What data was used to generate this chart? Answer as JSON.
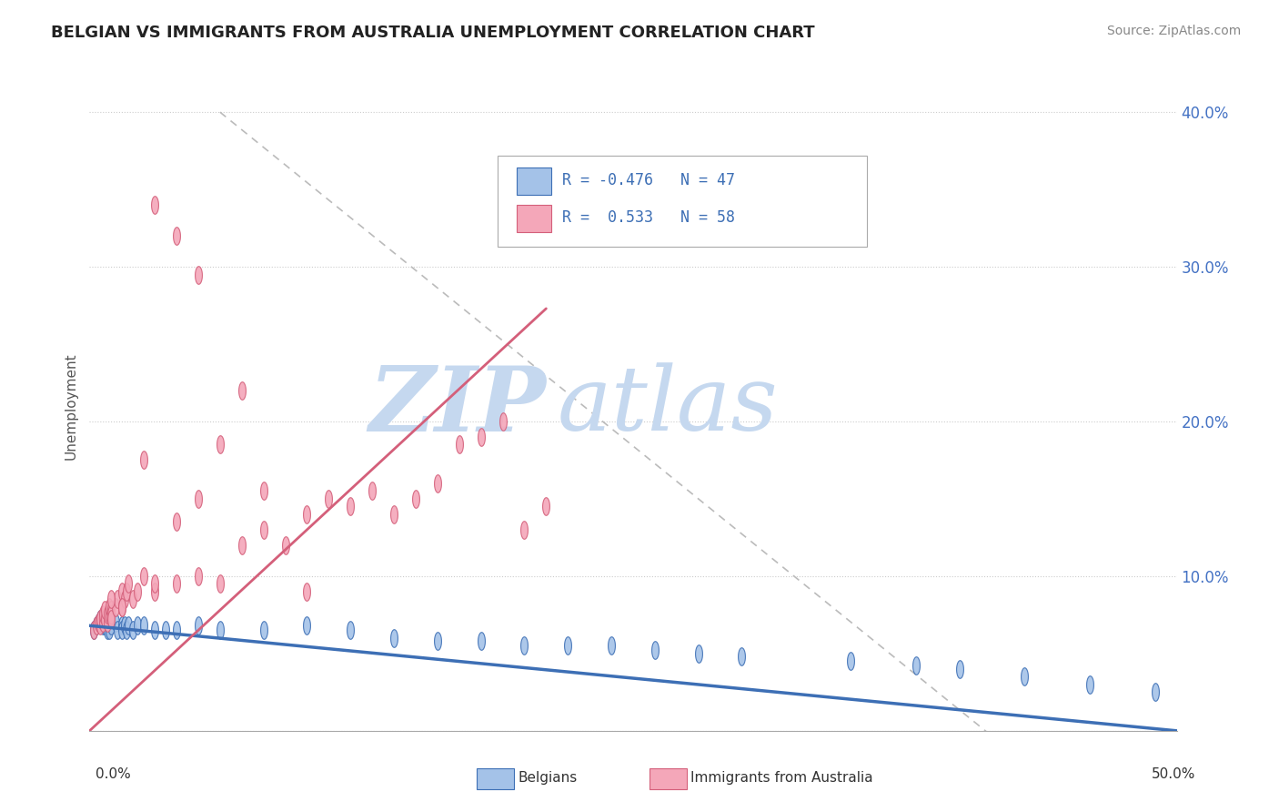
{
  "title": "BELGIAN VS IMMIGRANTS FROM AUSTRALIA UNEMPLOYMENT CORRELATION CHART",
  "source": "Source: ZipAtlas.com",
  "ylabel": "Unemployment",
  "r_belgian": -0.476,
  "n_belgian": 47,
  "r_australia": 0.533,
  "n_australia": 58,
  "color_belgian": "#a4c2e8",
  "color_australia": "#f4a7b9",
  "color_line_belgian": "#3d6fb5",
  "color_line_australia": "#d45f7a",
  "watermark_zip": "ZIP",
  "watermark_atlas": "atlas",
  "watermark_color_zip": "#c5d8ef",
  "watermark_color_atlas": "#c5d8ef",
  "xlim": [
    0.0,
    0.5
  ],
  "ylim": [
    0.0,
    0.42
  ],
  "yticks": [
    0.0,
    0.1,
    0.2,
    0.3,
    0.4
  ],
  "ytick_labels": [
    "",
    "10.0%",
    "20.0%",
    "30.0%",
    "40.0%"
  ],
  "xtick_color": "#4472c4",
  "ytick_color": "#4472c4",
  "belgian_x": [
    0.002,
    0.003,
    0.004,
    0.005,
    0.006,
    0.006,
    0.007,
    0.007,
    0.008,
    0.008,
    0.009,
    0.009,
    0.01,
    0.01,
    0.012,
    0.013,
    0.015,
    0.015,
    0.016,
    0.017,
    0.018,
    0.02,
    0.022,
    0.025,
    0.03,
    0.035,
    0.04,
    0.05,
    0.06,
    0.08,
    0.1,
    0.12,
    0.14,
    0.16,
    0.18,
    0.2,
    0.22,
    0.24,
    0.26,
    0.28,
    0.3,
    0.35,
    0.38,
    0.4,
    0.43,
    0.46,
    0.49
  ],
  "belgian_y": [
    0.065,
    0.068,
    0.07,
    0.072,
    0.07,
    0.068,
    0.072,
    0.068,
    0.07,
    0.065,
    0.068,
    0.065,
    0.07,
    0.068,
    0.07,
    0.065,
    0.068,
    0.065,
    0.068,
    0.065,
    0.068,
    0.065,
    0.068,
    0.068,
    0.065,
    0.065,
    0.065,
    0.068,
    0.065,
    0.065,
    0.068,
    0.065,
    0.06,
    0.058,
    0.058,
    0.055,
    0.055,
    0.055,
    0.052,
    0.05,
    0.048,
    0.045,
    0.042,
    0.04,
    0.035,
    0.03,
    0.025
  ],
  "australia_x": [
    0.002,
    0.003,
    0.004,
    0.005,
    0.005,
    0.006,
    0.006,
    0.007,
    0.007,
    0.008,
    0.008,
    0.009,
    0.009,
    0.01,
    0.01,
    0.01,
    0.012,
    0.013,
    0.015,
    0.015,
    0.016,
    0.017,
    0.018,
    0.02,
    0.022,
    0.025,
    0.03,
    0.04,
    0.05,
    0.06,
    0.07,
    0.08,
    0.09,
    0.1,
    0.11,
    0.12,
    0.13,
    0.14,
    0.15,
    0.16,
    0.17,
    0.18,
    0.19,
    0.2,
    0.21,
    0.1,
    0.08,
    0.05,
    0.04,
    0.03,
    0.025,
    0.06,
    0.07,
    0.04,
    0.05,
    0.03,
    0.015,
    0.01
  ],
  "australia_y": [
    0.065,
    0.068,
    0.07,
    0.068,
    0.072,
    0.07,
    0.075,
    0.072,
    0.078,
    0.07,
    0.075,
    0.075,
    0.08,
    0.078,
    0.075,
    0.072,
    0.08,
    0.085,
    0.08,
    0.09,
    0.085,
    0.09,
    0.095,
    0.085,
    0.09,
    0.1,
    0.09,
    0.095,
    0.1,
    0.095,
    0.12,
    0.13,
    0.12,
    0.14,
    0.15,
    0.145,
    0.155,
    0.14,
    0.15,
    0.16,
    0.185,
    0.19,
    0.2,
    0.13,
    0.145,
    0.09,
    0.155,
    0.295,
    0.32,
    0.34,
    0.175,
    0.185,
    0.22,
    0.135,
    0.15,
    0.095,
    0.08,
    0.085
  ]
}
